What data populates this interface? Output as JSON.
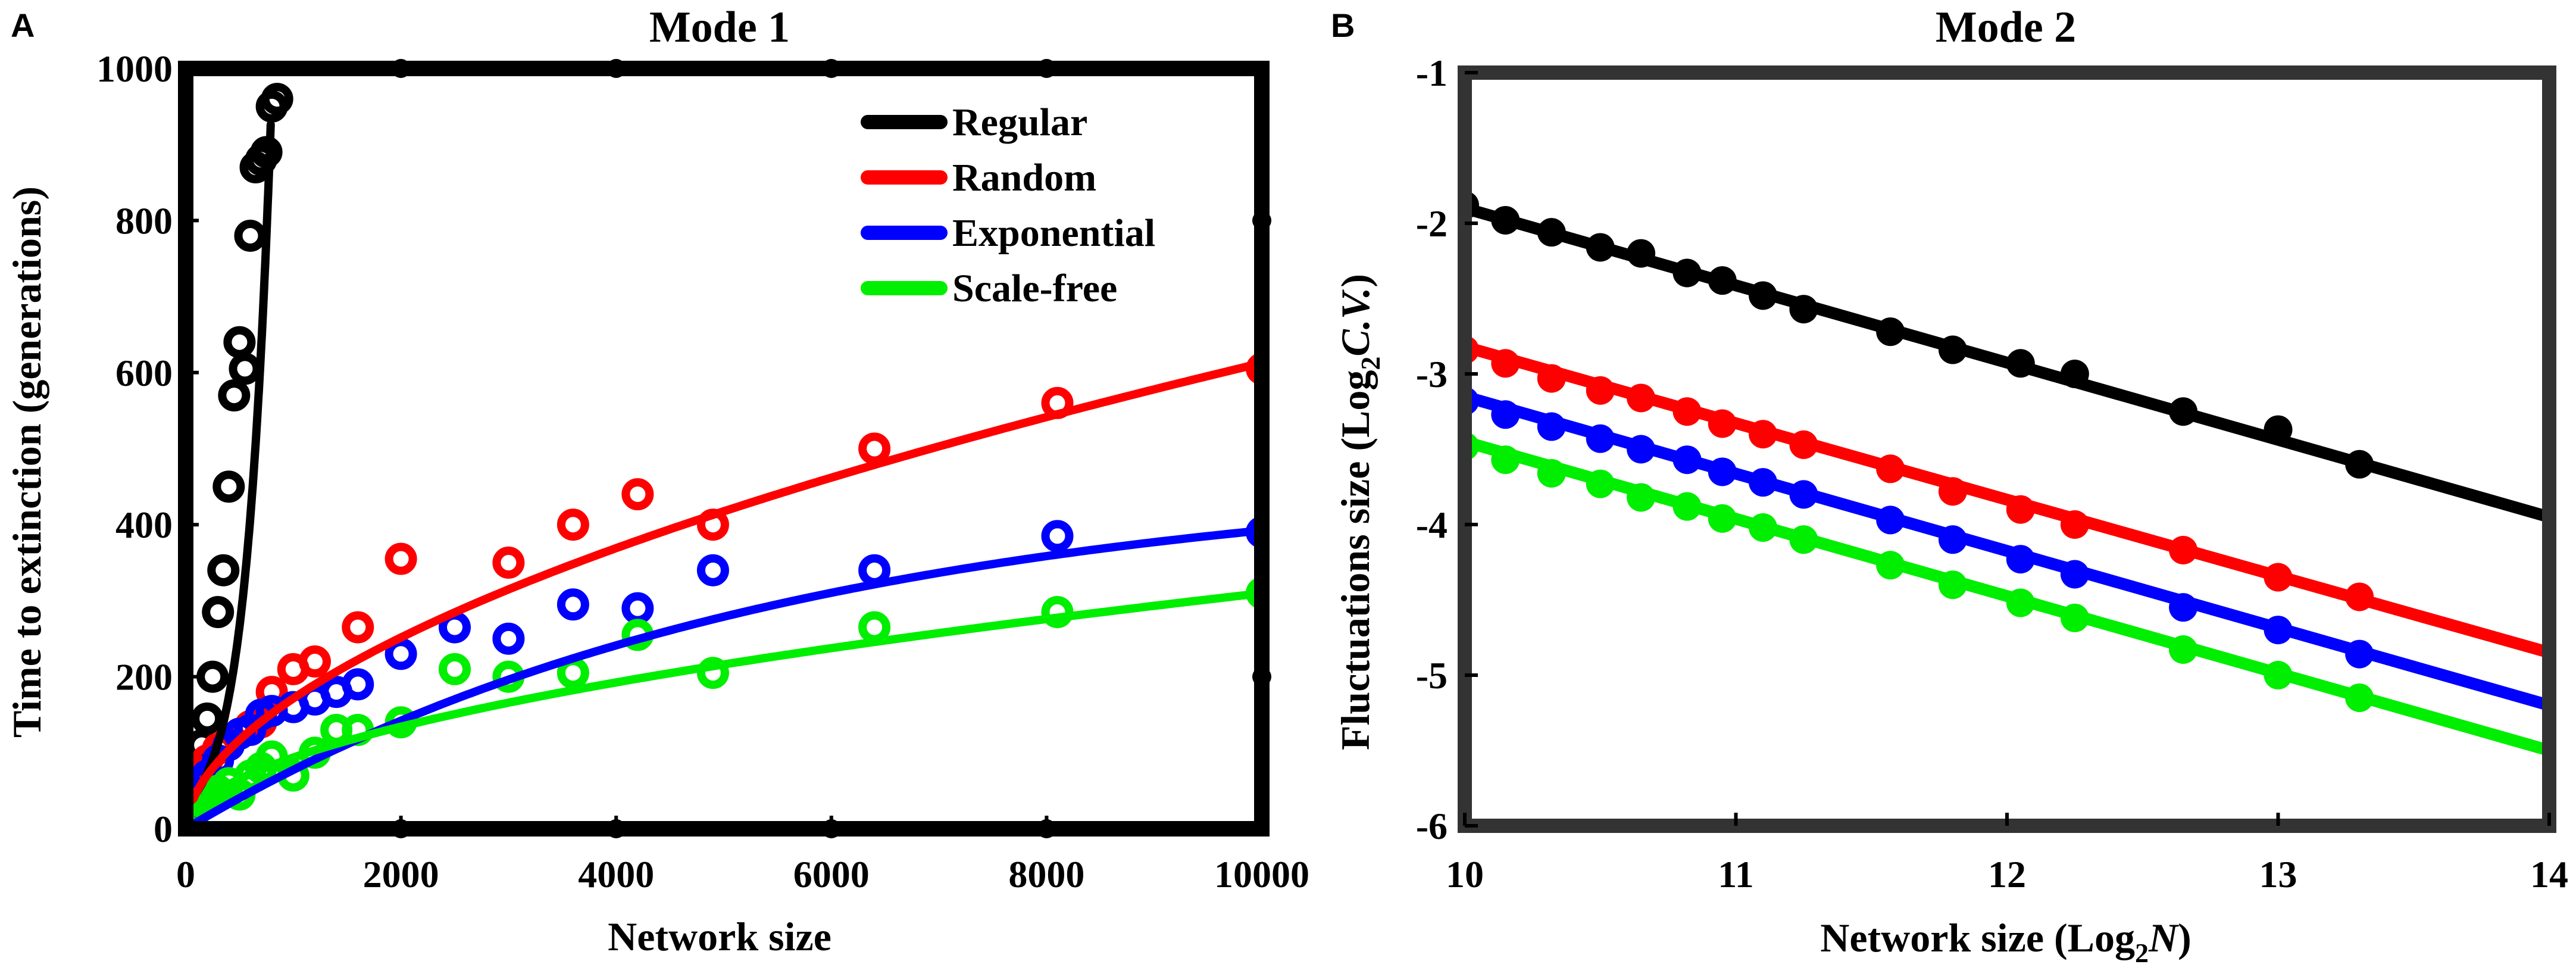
{
  "chart_data": [
    {
      "type": "scatter",
      "panel_label": "A",
      "title": "Mode 1",
      "xlabel": "Network size",
      "ylabel": "Time to extinction (generations)",
      "xlim": [
        0,
        10000
      ],
      "ylim": [
        0,
        1000
      ],
      "xticks": [
        0,
        2000,
        4000,
        6000,
        8000,
        10000
      ],
      "xtick_labels": [
        "0",
        "2000",
        "4000",
        "6000",
        "8000",
        "10000"
      ],
      "yticks": [
        0,
        200,
        400,
        600,
        800,
        1000
      ],
      "ytick_labels": [
        "0",
        "200",
        "400",
        "600",
        "800",
        "1000"
      ],
      "legend_position": "top-right",
      "series": [
        {
          "name": "Regular",
          "color": "#000000",
          "points": [
            [
              50,
              35
            ],
            [
              100,
              75
            ],
            [
              150,
              110
            ],
            [
              200,
              145
            ],
            [
              250,
              200
            ],
            [
              300,
              285
            ],
            [
              350,
              340
            ],
            [
              400,
              450
            ],
            [
              450,
              570
            ],
            [
              500,
              640
            ],
            [
              550,
              605
            ],
            [
              600,
              780
            ],
            [
              650,
              870
            ],
            [
              700,
              880
            ],
            [
              750,
              890
            ],
            [
              800,
              950
            ],
            [
              850,
              960
            ]
          ],
          "fit": {
            "kind": "exp",
            "a": 31,
            "b": 0.0043,
            "xmax": 790
          }
        },
        {
          "name": "Random",
          "color": "#ff0000",
          "points": [
            [
              50,
              30
            ],
            [
              100,
              55
            ],
            [
              150,
              75
            ],
            [
              200,
              90
            ],
            [
              300,
              105
            ],
            [
              400,
              115
            ],
            [
              500,
              125
            ],
            [
              600,
              135
            ],
            [
              700,
              140
            ],
            [
              800,
              180
            ],
            [
              1000,
              210
            ],
            [
              1200,
              220
            ],
            [
              1600,
              265
            ],
            [
              2000,
              355
            ],
            [
              3000,
              350
            ],
            [
              3600,
              400
            ],
            [
              4200,
              440
            ],
            [
              4900,
              400
            ],
            [
              6400,
              500
            ],
            [
              8100,
              560
            ],
            [
              10000,
              605
            ]
          ],
          "fit": {
            "kind": "power",
            "a": 3.76,
            "b": 0.553
          }
        },
        {
          "name": "Exponential",
          "color": "#0000ff",
          "points": [
            [
              50,
              25
            ],
            [
              100,
              45
            ],
            [
              150,
              60
            ],
            [
              200,
              70
            ],
            [
              300,
              90
            ],
            [
              400,
              110
            ],
            [
              500,
              125
            ],
            [
              600,
              130
            ],
            [
              700,
              150
            ],
            [
              800,
              155
            ],
            [
              1000,
              160
            ],
            [
              1200,
              170
            ],
            [
              1400,
              180
            ],
            [
              1600,
              190
            ],
            [
              2000,
              230
            ],
            [
              2500,
              265
            ],
            [
              3000,
              250
            ],
            [
              3600,
              295
            ],
            [
              4200,
              290
            ],
            [
              4900,
              340
            ],
            [
              6400,
              340
            ],
            [
              8100,
              385
            ],
            [
              10000,
              390
            ]
          ],
          "fit": {
            "kind": "asym",
            "a": 470,
            "b": 0.00018
          }
        },
        {
          "name": "Scale-free",
          "color": "#00ee00",
          "points": [
            [
              50,
              15
            ],
            [
              100,
              25
            ],
            [
              150,
              35
            ],
            [
              200,
              40
            ],
            [
              300,
              50
            ],
            [
              400,
              60
            ],
            [
              500,
              45
            ],
            [
              600,
              70
            ],
            [
              700,
              80
            ],
            [
              800,
              95
            ],
            [
              1000,
              70
            ],
            [
              1200,
              100
            ],
            [
              1400,
              130
            ],
            [
              1600,
              130
            ],
            [
              2000,
              140
            ],
            [
              2500,
              210
            ],
            [
              3000,
              200
            ],
            [
              3600,
              205
            ],
            [
              4200,
              255
            ],
            [
              4900,
              205
            ],
            [
              6400,
              265
            ],
            [
              8100,
              285
            ],
            [
              10000,
              310
            ]
          ],
          "fit": {
            "kind": "power",
            "a": 2.6,
            "b": 0.519
          }
        }
      ],
      "edge_markers": [
        [
          2000,
          1000
        ],
        [
          4000,
          1000
        ],
        [
          6000,
          1000
        ],
        [
          8000,
          1000
        ],
        [
          10000,
          800
        ],
        [
          10000,
          200
        ],
        [
          2000,
          0
        ],
        [
          4000,
          0
        ],
        [
          6000,
          0
        ],
        [
          8000,
          0
        ]
      ]
    },
    {
      "type": "scatter",
      "panel_label": "B",
      "title": "Mode 2",
      "xlabel": "Network size (Log",
      "xlabel_sub": "2",
      "xlabel_var": "N",
      "xlabel_close": ")",
      "ylabel": "Fluctuations size (Log",
      "ylabel_sub": "2",
      "ylabel_var": "C.V.",
      "ylabel_close": ")",
      "xlim": [
        10,
        14
      ],
      "ylim": [
        -6,
        -1
      ],
      "xticks": [
        10,
        11,
        12,
        13,
        14
      ],
      "xtick_labels": [
        "10",
        "11",
        "12",
        "13",
        "14"
      ],
      "yticks": [
        -6,
        -5,
        -4,
        -3,
        -2,
        -1
      ],
      "ytick_labels": [
        "-6",
        "-5",
        "-4",
        "-3",
        "-2",
        "-1"
      ],
      "x": [
        10.0,
        10.15,
        10.32,
        10.5,
        10.65,
        10.82,
        10.95,
        11.1,
        11.25,
        11.57,
        11.8,
        12.05,
        12.25,
        12.65,
        13.0,
        13.3
      ],
      "series": [
        {
          "name": "Regular",
          "color": "#000000",
          "values": [
            -1.88,
            -1.98,
            -2.06,
            -2.16,
            -2.2,
            -2.33,
            -2.38,
            -2.48,
            -2.57,
            -2.72,
            -2.84,
            -2.93,
            -3.0,
            -3.25,
            -3.37,
            -3.6
          ],
          "fit": {
            "x": [
              10,
              14
            ],
            "y": [
              -1.9,
              -3.95
            ]
          }
        },
        {
          "name": "Random",
          "color": "#ff0000",
          "values": [
            -2.84,
            -2.93,
            -3.03,
            -3.11,
            -3.16,
            -3.25,
            -3.33,
            -3.4,
            -3.47,
            -3.63,
            -3.78,
            -3.9,
            -4.0,
            -4.17,
            -4.35,
            -4.48
          ],
          "fit": {
            "x": [
              10,
              14
            ],
            "y": [
              -2.82,
              -4.85
            ]
          }
        },
        {
          "name": "Exponential",
          "color": "#0000ff",
          "values": [
            -3.18,
            -3.27,
            -3.35,
            -3.43,
            -3.5,
            -3.57,
            -3.65,
            -3.72,
            -3.8,
            -3.97,
            -4.1,
            -4.23,
            -4.33,
            -4.55,
            -4.7,
            -4.86
          ],
          "fit": {
            "x": [
              10,
              14
            ],
            "y": [
              -3.15,
              -5.2
            ]
          }
        },
        {
          "name": "Scale-free",
          "color": "#00ee00",
          "values": [
            -3.48,
            -3.57,
            -3.66,
            -3.73,
            -3.82,
            -3.88,
            -3.96,
            -4.02,
            -4.1,
            -4.27,
            -4.4,
            -4.52,
            -4.62,
            -4.83,
            -5.0,
            -5.15
          ],
          "fit": {
            "x": [
              10,
              14
            ],
            "y": [
              -3.45,
              -5.5
            ]
          }
        }
      ]
    }
  ]
}
